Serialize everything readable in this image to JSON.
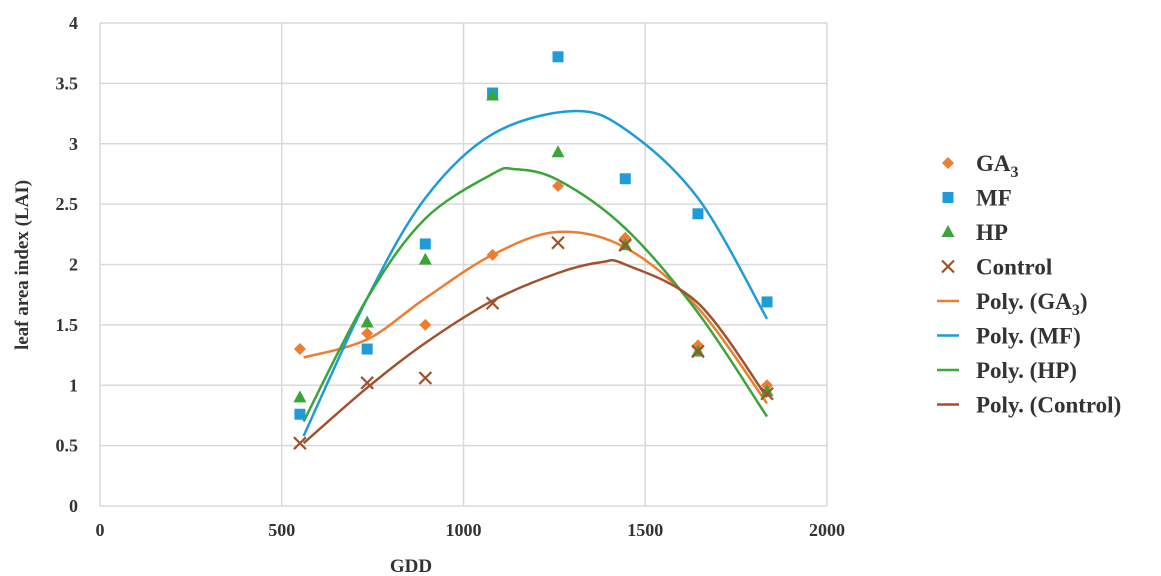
{
  "chart_data": {
    "type": "scatter",
    "xlabel": "GDD",
    "ylabel": "leaf area index (LAI)",
    "xlim": [
      0,
      2000
    ],
    "ylim": [
      0,
      4
    ],
    "xticks": [
      "0",
      "500",
      "1000",
      "1500",
      "2000"
    ],
    "yticks": [
      "0",
      "0.5",
      "1",
      "1.5",
      "2",
      "2.5",
      "3",
      "3.5",
      "4"
    ],
    "grid": true,
    "legend_position": "right",
    "series": [
      {
        "name": "GA",
        "name_sub": "3",
        "marker": "diamond",
        "color": "#ed7d31",
        "points": [
          [
            550,
            1.3
          ],
          [
            735,
            1.43
          ],
          [
            895,
            1.5
          ],
          [
            1080,
            2.08
          ],
          [
            1260,
            2.65
          ],
          [
            1445,
            2.22
          ],
          [
            1645,
            1.33
          ],
          [
            1835,
            1.0
          ]
        ]
      },
      {
        "name": "MF",
        "name_sub": "",
        "marker": "square",
        "color": "#1f9bd7",
        "points": [
          [
            550,
            0.76
          ],
          [
            735,
            1.3
          ],
          [
            895,
            2.17
          ],
          [
            1080,
            3.42
          ],
          [
            1260,
            3.72
          ],
          [
            1445,
            2.71
          ],
          [
            1645,
            2.42
          ],
          [
            1835,
            1.69
          ]
        ]
      },
      {
        "name": "HP",
        "name_sub": "",
        "marker": "triangle",
        "color": "#3aa63a",
        "points": [
          [
            550,
            0.9
          ],
          [
            735,
            1.52
          ],
          [
            895,
            2.04
          ],
          [
            1080,
            3.4
          ],
          [
            1260,
            2.93
          ],
          [
            1445,
            2.16
          ],
          [
            1645,
            1.28
          ],
          [
            1835,
            0.95
          ]
        ]
      },
      {
        "name": "Control",
        "name_sub": "",
        "marker": "x",
        "color": "#a0522d",
        "points": [
          [
            550,
            0.52
          ],
          [
            735,
            1.02
          ],
          [
            895,
            1.06
          ],
          [
            1080,
            1.68
          ],
          [
            1260,
            2.18
          ],
          [
            1445,
            2.16
          ],
          [
            1645,
            1.28
          ],
          [
            1835,
            0.93
          ]
        ]
      }
    ],
    "trendlines": [
      {
        "name": "Poly. (GA",
        "name_sub": "3",
        "name_suffix": ")",
        "color": "#ed7d31",
        "points": [
          [
            560,
            1.23
          ],
          [
            735,
            1.38
          ],
          [
            895,
            1.72
          ],
          [
            1080,
            2.08
          ],
          [
            1260,
            2.27
          ],
          [
            1445,
            2.14
          ],
          [
            1645,
            1.64
          ],
          [
            1835,
            0.85
          ]
        ]
      },
      {
        "name": "Poly. (MF)",
        "name_sub": "",
        "name_suffix": "",
        "color": "#1f9bd7",
        "points": [
          [
            560,
            0.58
          ],
          [
            735,
            1.72
          ],
          [
            895,
            2.55
          ],
          [
            1080,
            3.08
          ],
          [
            1300,
            3.27
          ],
          [
            1445,
            3.12
          ],
          [
            1645,
            2.55
          ],
          [
            1835,
            1.55
          ]
        ]
      },
      {
        "name": "Poly. (HP)",
        "name_sub": "",
        "name_suffix": "",
        "color": "#3aa63a",
        "points": [
          [
            560,
            0.7
          ],
          [
            735,
            1.72
          ],
          [
            895,
            2.38
          ],
          [
            1080,
            2.75
          ],
          [
            1140,
            2.79
          ],
          [
            1260,
            2.7
          ],
          [
            1445,
            2.3
          ],
          [
            1645,
            1.6
          ],
          [
            1835,
            0.74
          ]
        ]
      },
      {
        "name": "Poly. (Control)",
        "name_sub": "",
        "name_suffix": "",
        "color": "#a0522d",
        "points": [
          [
            560,
            0.52
          ],
          [
            735,
            0.98
          ],
          [
            895,
            1.35
          ],
          [
            1080,
            1.7
          ],
          [
            1260,
            1.93
          ],
          [
            1380,
            2.02
          ],
          [
            1445,
            2.0
          ],
          [
            1645,
            1.68
          ],
          [
            1835,
            0.9
          ]
        ]
      }
    ]
  }
}
